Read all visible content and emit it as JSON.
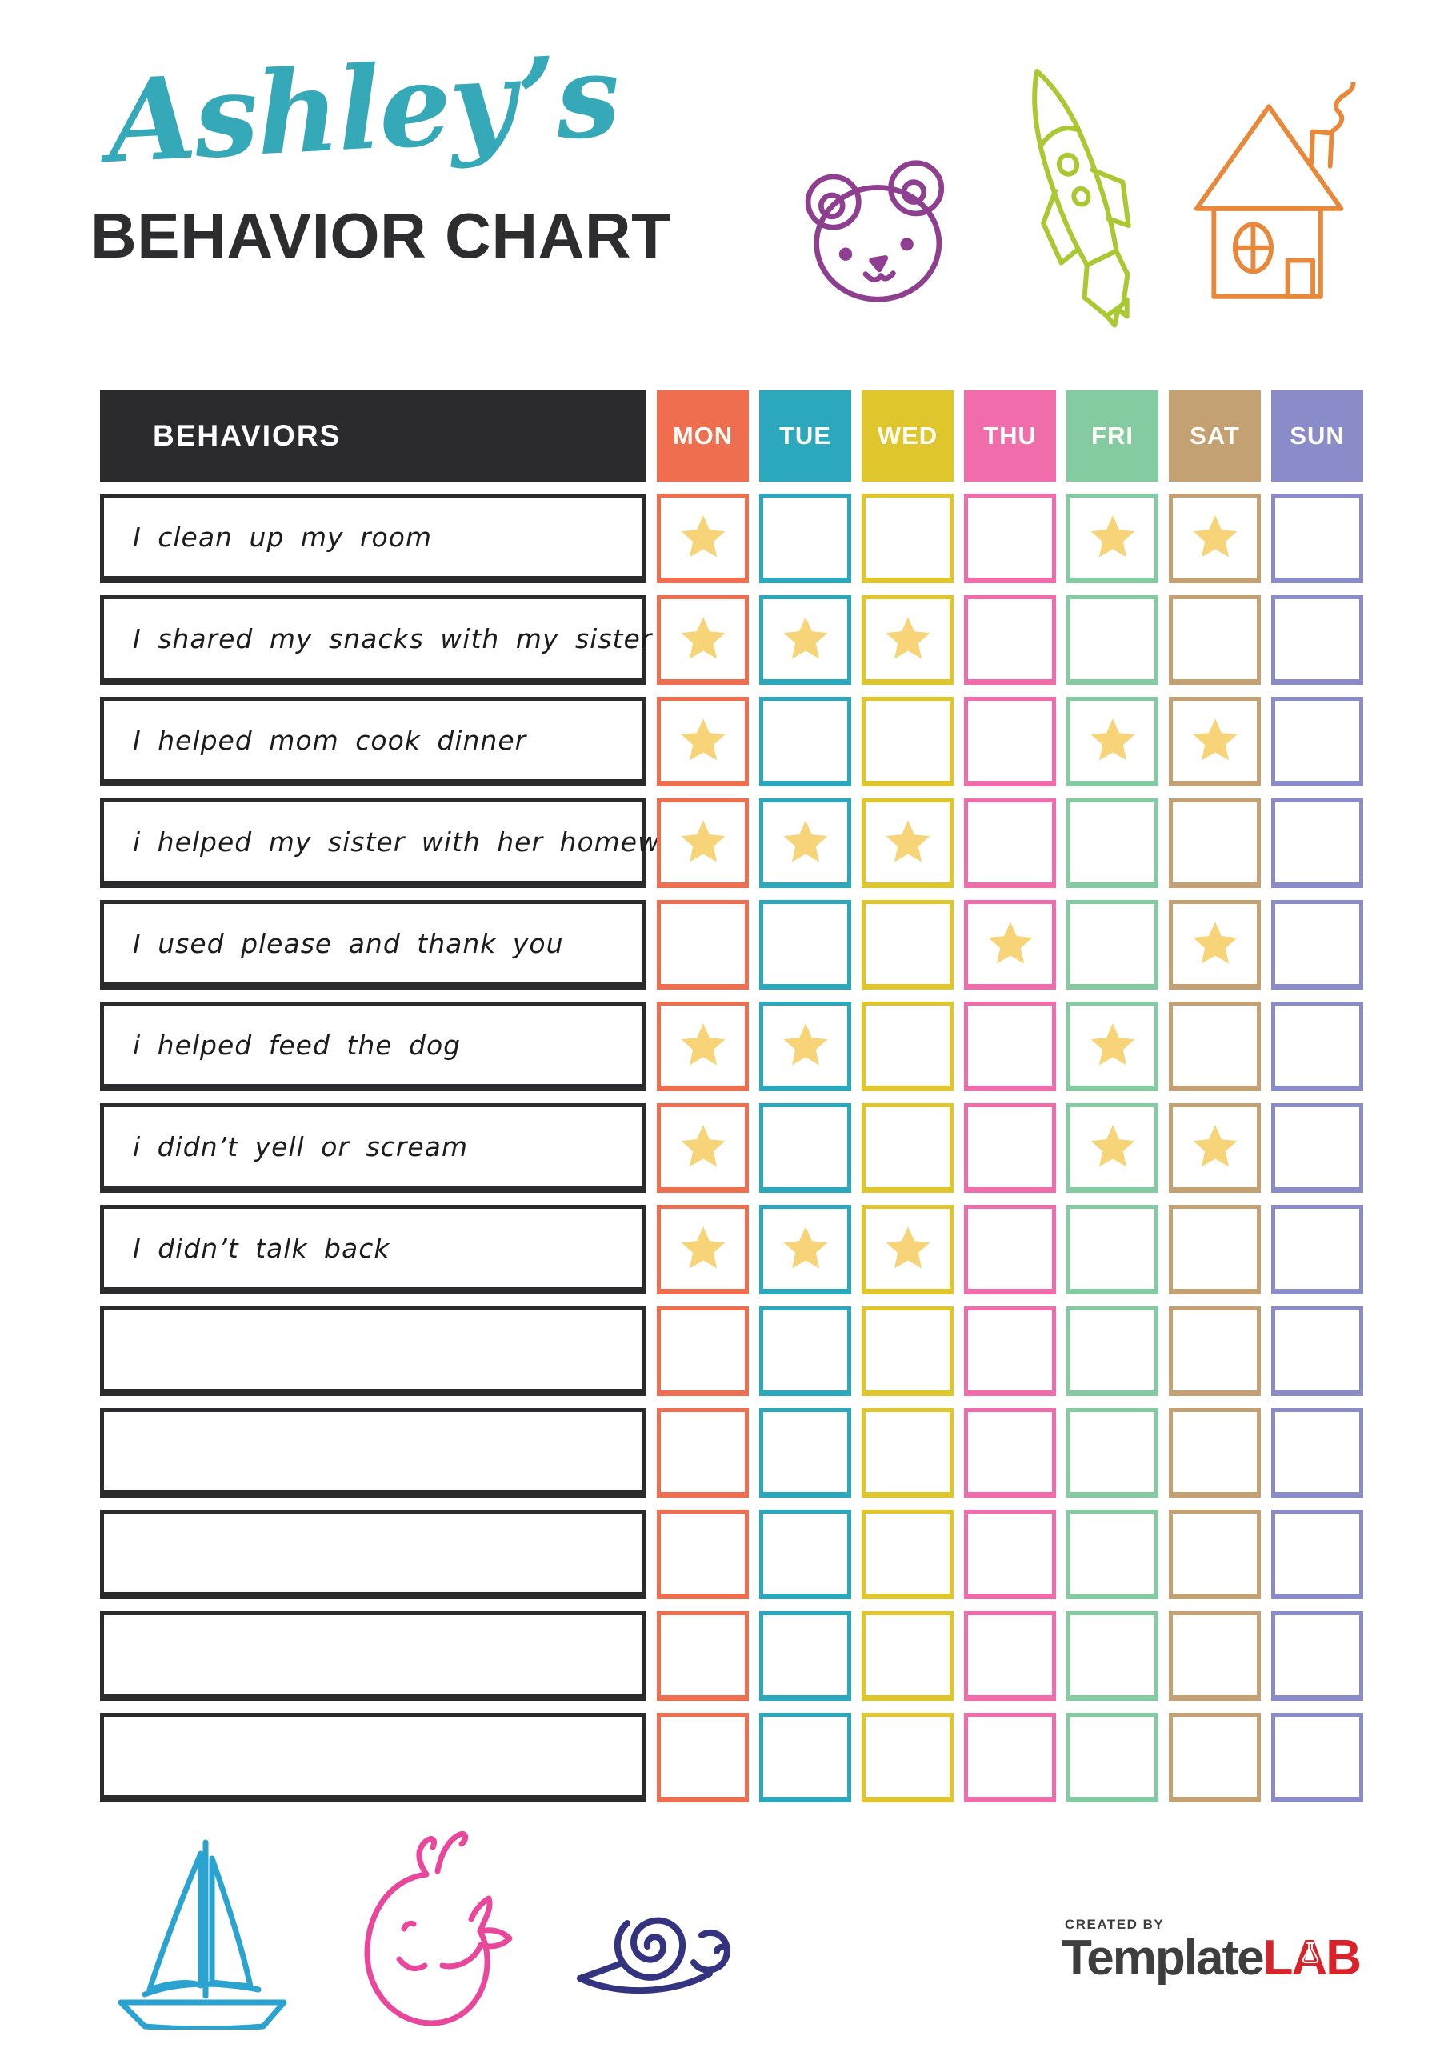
{
  "header": {
    "name_script": "Ashley’s",
    "title": "BEHAVIOR CHART"
  },
  "colors": {
    "title": "#35a9b7",
    "ink": "#2d2d30",
    "head-bg": "#2b2b2e",
    "star": "#f8d478",
    "bear": "#8e3f8f",
    "rocket": "#a9c832",
    "house": "#e8883a",
    "boat": "#2aa3d0",
    "whale": "#e8479c",
    "snail": "#33337f",
    "logo-text": "#3e3e3e",
    "logo-accent": "#d8232a"
  },
  "table": {
    "behaviors_label": "BEHAVIORS",
    "days": [
      {
        "label": "MON",
        "color": "#ee6e4f"
      },
      {
        "label": "TUE",
        "color": "#2ba8bc"
      },
      {
        "label": "WED",
        "color": "#e0c62d"
      },
      {
        "label": "THU",
        "color": "#f06cab"
      },
      {
        "label": "FRI",
        "color": "#85cba1"
      },
      {
        "label": "SAT",
        "color": "#c4a173"
      },
      {
        "label": "SUN",
        "color": "#8a8cc9"
      }
    ],
    "rows": [
      {
        "behavior": "I clean up my room",
        "stars": [
          1,
          0,
          0,
          0,
          1,
          1,
          0
        ]
      },
      {
        "behavior": "I shared my snacks with my sister",
        "stars": [
          1,
          1,
          1,
          0,
          0,
          0,
          0
        ]
      },
      {
        "behavior": "I helped mom cook dinner",
        "stars": [
          1,
          0,
          0,
          0,
          1,
          1,
          0
        ]
      },
      {
        "behavior": "i helped my sister with her homework",
        "stars": [
          1,
          1,
          1,
          0,
          0,
          0,
          0
        ]
      },
      {
        "behavior": "I used please and thank you",
        "stars": [
          0,
          0,
          0,
          1,
          0,
          1,
          0
        ]
      },
      {
        "behavior": "i helped feed the dog",
        "stars": [
          1,
          1,
          0,
          0,
          1,
          0,
          0
        ]
      },
      {
        "behavior": "i didn’t yell or scream",
        "stars": [
          1,
          0,
          0,
          0,
          1,
          1,
          0
        ]
      },
      {
        "behavior": "I didn’t talk back",
        "stars": [
          1,
          1,
          1,
          0,
          0,
          0,
          0
        ]
      },
      {
        "behavior": "",
        "stars": [
          0,
          0,
          0,
          0,
          0,
          0,
          0
        ]
      },
      {
        "behavior": "",
        "stars": [
          0,
          0,
          0,
          0,
          0,
          0,
          0
        ]
      },
      {
        "behavior": "",
        "stars": [
          0,
          0,
          0,
          0,
          0,
          0,
          0
        ]
      },
      {
        "behavior": "",
        "stars": [
          0,
          0,
          0,
          0,
          0,
          0,
          0
        ]
      },
      {
        "behavior": "",
        "stars": [
          0,
          0,
          0,
          0,
          0,
          0,
          0
        ]
      }
    ]
  },
  "footer": {
    "created_by": "CREATED BY",
    "brand_name": "Template",
    "brand_suffix": "LAB"
  }
}
